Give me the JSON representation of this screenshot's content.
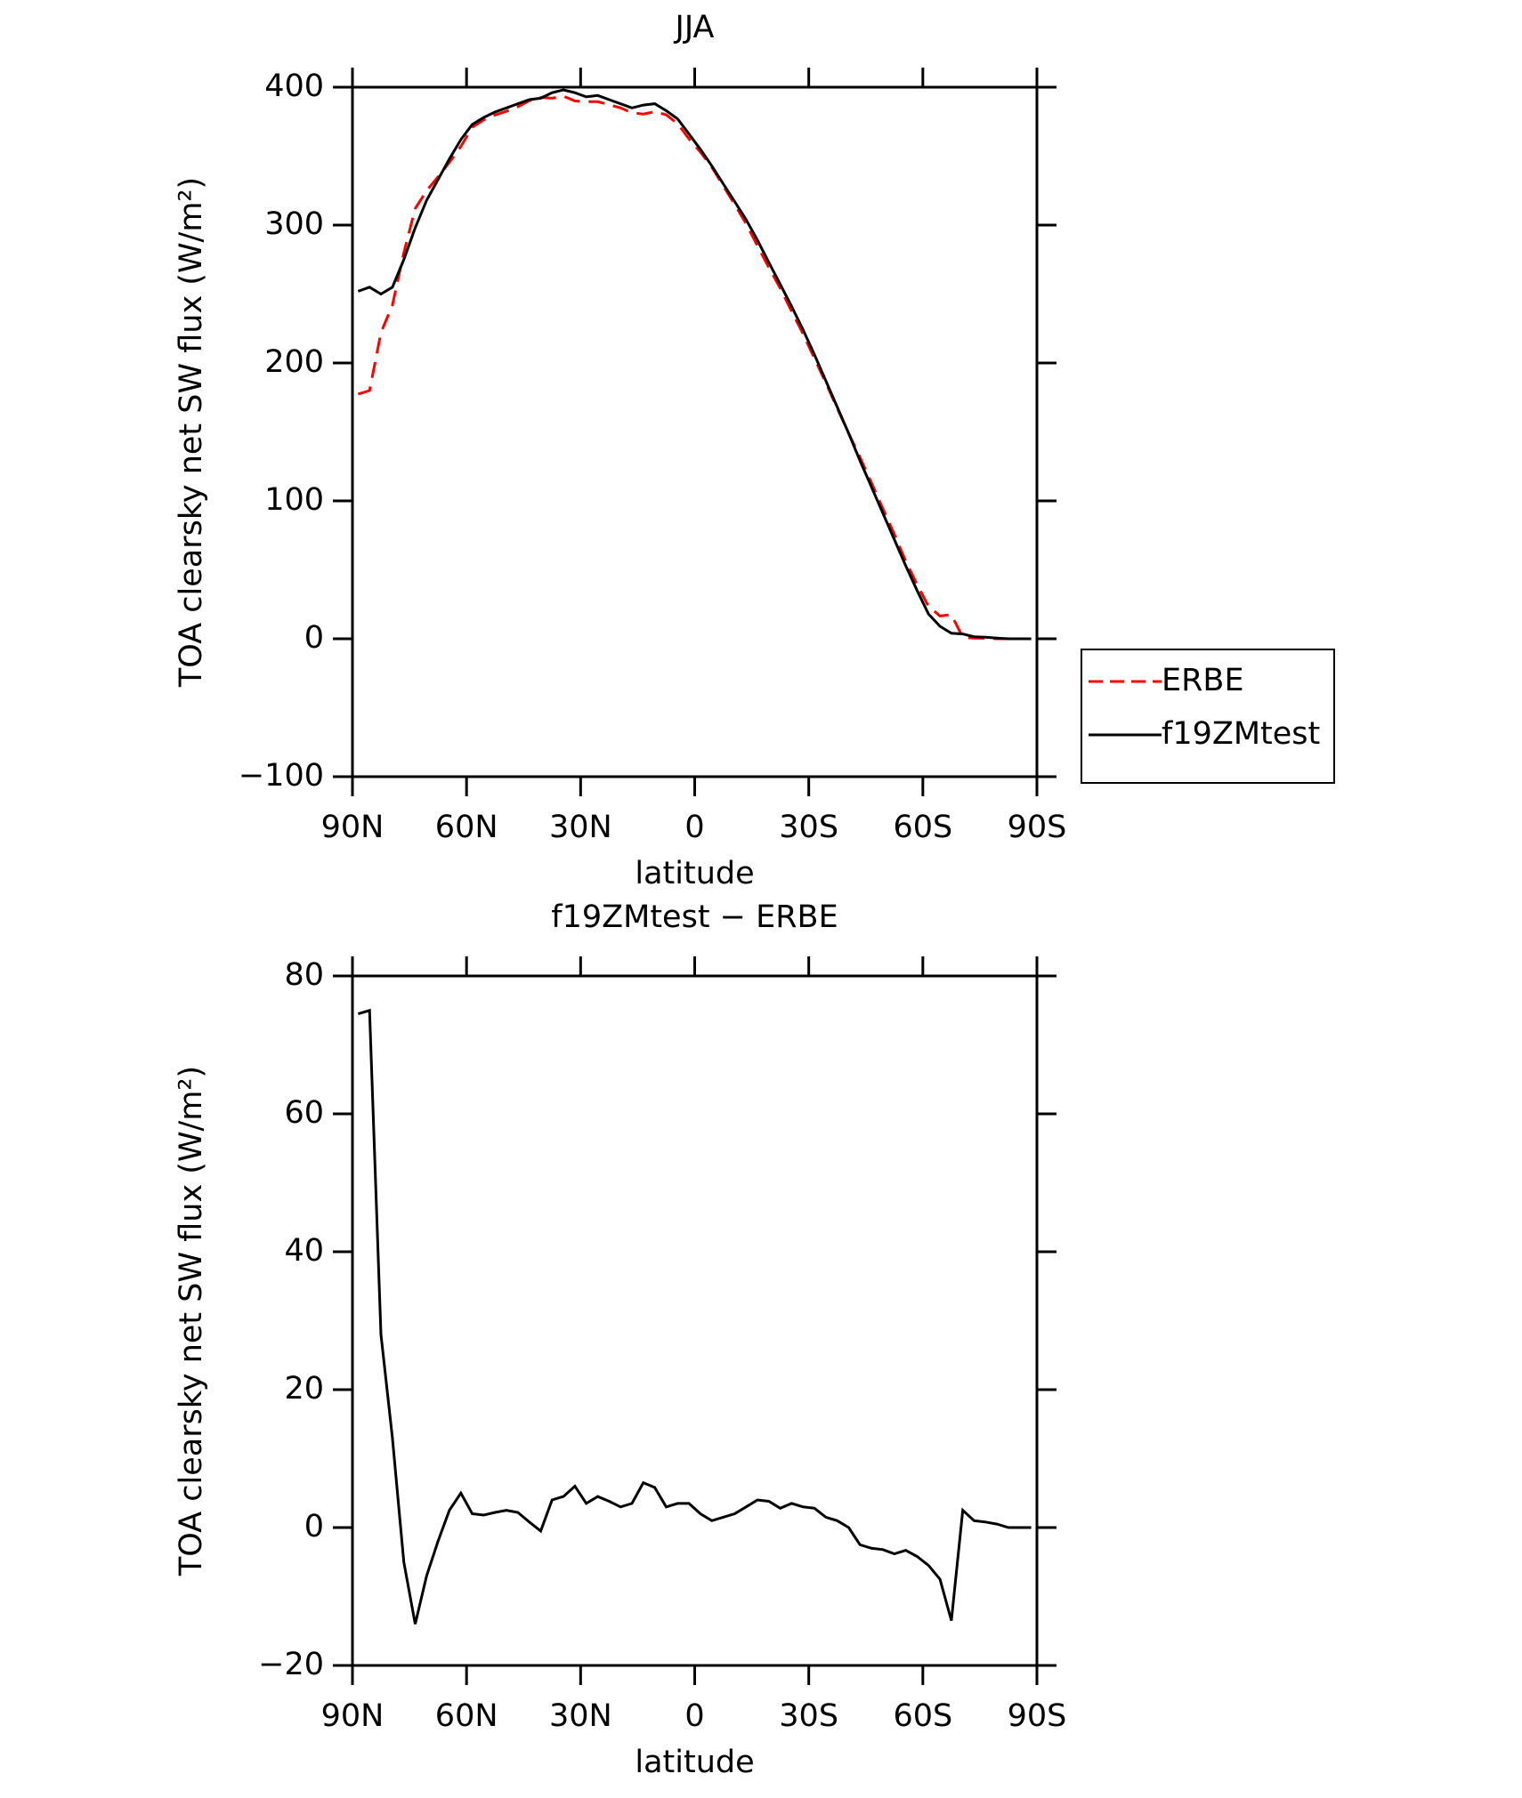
{
  "chart_data": [
    {
      "type": "line",
      "title": "JJA",
      "x_label": "latitude",
      "y_label": "TOA clearsky net SW flux (W/m²)",
      "x": [
        88.5,
        85.5,
        82.5,
        79.5,
        76.5,
        73.5,
        70.5,
        67.5,
        64.5,
        61.5,
        58.5,
        55.5,
        52.5,
        49.5,
        46.5,
        43.5,
        40.5,
        37.5,
        34.5,
        31.5,
        28.5,
        25.5,
        22.5,
        19.5,
        16.5,
        13.5,
        10.5,
        7.5,
        4.5,
        1.5,
        -1.5,
        -4.5,
        -7.5,
        -10.5,
        -13.5,
        -16.5,
        -19.5,
        -22.5,
        -25.5,
        -28.5,
        -31.5,
        -34.5,
        -37.5,
        -40.5,
        -43.5,
        -46.5,
        -49.5,
        -52.5,
        -55.5,
        -58.5,
        -61.5,
        -64.5,
        -67.5,
        -70.5,
        -73.5,
        -76.5,
        -79.5,
        -82.5,
        -85.5,
        -88.5
      ],
      "series": [
        {
          "name": "ERBE",
          "color": "#ff0000",
          "dashed": true,
          "values": [
            177.5,
            180,
            222,
            242,
            280,
            312,
            325,
            335,
            345.5,
            357,
            371,
            376.2,
            379.8,
            382.5,
            385.8,
            390.2,
            392.5,
            392,
            393.5,
            390,
            389.5,
            389.5,
            387.2,
            385,
            381.5,
            380.5,
            382.2,
            380,
            373.5,
            362.5,
            353,
            342,
            328.5,
            315,
            301,
            285,
            269.2,
            254.2,
            237.5,
            221,
            203.2,
            185.5,
            167,
            149,
            131.5,
            113,
            94.2,
            75.8,
            56.3,
            39.2,
            23.5,
            16.5,
            17.5,
            1,
            0.5,
            0.3,
            0,
            0,
            0,
            0
          ]
        },
        {
          "name": "f19ZMtest",
          "color": "#000000",
          "dashed": false,
          "values": [
            252,
            255,
            250,
            255,
            275,
            298,
            318,
            333,
            348,
            362,
            373,
            378,
            382,
            385,
            388,
            391,
            392,
            396,
            398,
            396,
            393,
            394,
            391,
            388,
            385,
            387,
            388,
            383,
            377,
            366,
            355,
            343,
            330,
            317,
            304,
            289,
            273,
            257,
            241,
            224,
            206,
            187,
            168,
            149,
            129,
            110,
            91,
            72,
            53,
            35,
            18,
            9,
            4,
            3.5,
            1.5,
            1.1,
            0.5,
            0,
            0,
            0
          ]
        }
      ],
      "xlim": [
        90,
        -90
      ],
      "xticks": [
        {
          "value": 90,
          "label": "90N"
        },
        {
          "value": 60,
          "label": "60N"
        },
        {
          "value": 30,
          "label": "30N"
        },
        0,
        {
          "value": -30,
          "label": "30S"
        },
        {
          "value": -60,
          "label": "60S"
        },
        {
          "value": -90,
          "label": "90S"
        }
      ],
      "ylim": [
        -100,
        400
      ],
      "yticks": [
        {
          "value": -100,
          "label": "−100"
        },
        0,
        100,
        200,
        300,
        400
      ],
      "legend": "right"
    },
    {
      "type": "line",
      "title": "f19ZMtest − ERBE",
      "x_label": "latitude",
      "y_label": "TOA clearsky net SW flux (W/m²)",
      "x": [
        88.5,
        85.5,
        82.5,
        79.5,
        76.5,
        73.5,
        70.5,
        67.5,
        64.5,
        61.5,
        58.5,
        55.5,
        52.5,
        49.5,
        46.5,
        43.5,
        40.5,
        37.5,
        34.5,
        31.5,
        28.5,
        25.5,
        22.5,
        19.5,
        16.5,
        13.5,
        10.5,
        7.5,
        4.5,
        1.5,
        -1.5,
        -4.5,
        -7.5,
        -10.5,
        -13.5,
        -16.5,
        -19.5,
        -22.5,
        -25.5,
        -28.5,
        -31.5,
        -34.5,
        -37.5,
        -40.5,
        -43.5,
        -46.5,
        -49.5,
        -52.5,
        -55.5,
        -58.5,
        -61.5,
        -64.5,
        -67.5,
        -70.5,
        -73.5,
        -76.5,
        -79.5,
        -82.5,
        -85.5,
        -88.5
      ],
      "values": [
        74.5,
        75,
        28,
        13,
        -5,
        -14,
        -7,
        -2,
        2.5,
        5,
        2,
        1.8,
        2.2,
        2.5,
        2.2,
        0.8,
        -0.5,
        4,
        4.5,
        6,
        3.5,
        4.5,
        3.8,
        3,
        3.5,
        6.5,
        5.8,
        3,
        3.5,
        3.5,
        2,
        1,
        1.5,
        2,
        3,
        4,
        3.8,
        2.8,
        3.5,
        3,
        2.8,
        1.5,
        1,
        0,
        -2.5,
        -3,
        -3.2,
        -3.8,
        -3.3,
        -4.2,
        -5.5,
        -7.5,
        -13.5,
        2.5,
        1,
        0.8,
        0.5,
        0,
        0,
        0
      ],
      "color": "#000000",
      "xlim": [
        90,
        -90
      ],
      "xticks": [
        {
          "value": 90,
          "label": "90N"
        },
        {
          "value": 60,
          "label": "60N"
        },
        {
          "value": 30,
          "label": "30N"
        },
        0,
        {
          "value": -30,
          "label": "30S"
        },
        {
          "value": -60,
          "label": "60S"
        },
        {
          "value": -90,
          "label": "90S"
        }
      ],
      "ylim": [
        -20,
        80
      ],
      "yticks": [
        {
          "value": -20,
          "label": "−20"
        },
        0,
        20,
        40,
        60,
        80
      ]
    }
  ]
}
